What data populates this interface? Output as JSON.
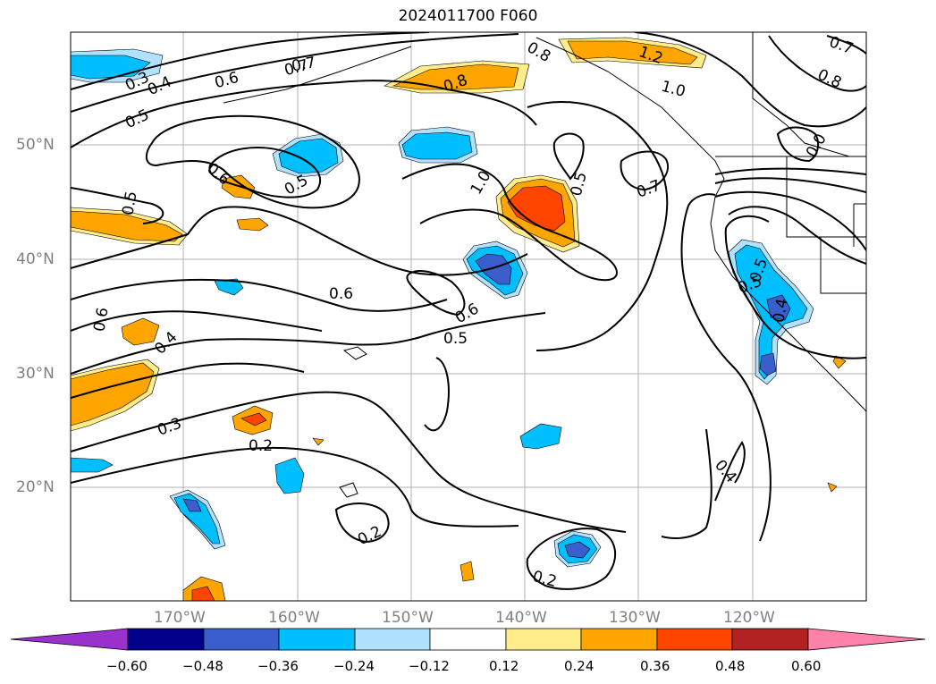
{
  "title": "2024011700 F060",
  "latitude_labels": [
    "50°N",
    "40°N",
    "30°N",
    "20°N"
  ],
  "longitude_labels": [
    "170°W",
    "160°W",
    "150°W",
    "140°W",
    "130°W",
    "120°W"
  ],
  "colorbar": {
    "ticks": [
      "−0.60",
      "−0.48",
      "−0.36",
      "−0.24",
      "−0.12",
      "0.12",
      "0.24",
      "0.36",
      "0.48",
      "0.60"
    ],
    "colors": [
      "#9932cc",
      "#00008b",
      "#3a5fcd",
      "#00bfff",
      "#b0e2ff",
      "#ffffff",
      "#ffec8b",
      "#ffa500",
      "#ff4500",
      "#b22222",
      "#ff82ab"
    ]
  },
  "contour_labels": [
    "0.3",
    "0.4",
    "0.5",
    "0.6",
    "0.7",
    "0.8",
    "0.8",
    "1.2",
    "1.0",
    "0.8",
    "0.7",
    "0.6",
    "0.5",
    "0.5",
    "1.0",
    "0.5",
    "0.7",
    "0.0",
    "0.6",
    "0.5",
    "0.6",
    "0.6",
    "0.4",
    "0.5",
    "0.3",
    "0.2",
    "0.2",
    "0.2",
    "0.4",
    "0.5",
    "0.4",
    "0.7"
  ]
}
